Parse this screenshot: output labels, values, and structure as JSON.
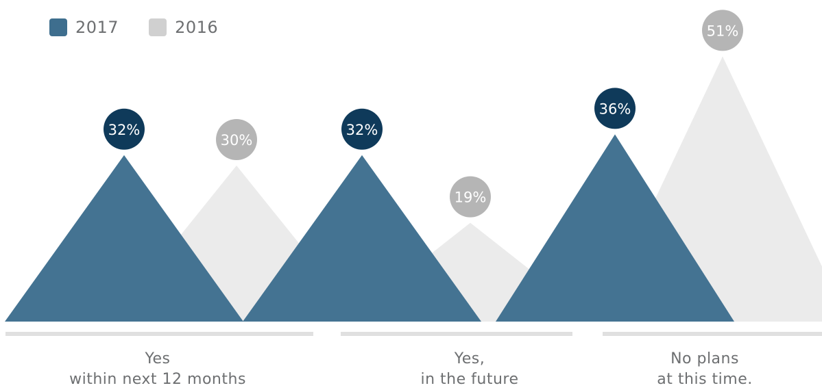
{
  "legend": [
    {
      "label": "2017",
      "color": "#3e6e8e"
    },
    {
      "label": "2016",
      "color": "#d0d0d0"
    }
  ],
  "colors": {
    "series_2017": "#3e6e8e",
    "series_2016": "#e8e8e8",
    "bubble_2017": "#0f3a5a",
    "bubble_2016": "#b5b5b5",
    "baseline": "#e0e0e0",
    "label_text": "#6d6f71"
  },
  "chart_data": {
    "type": "bar",
    "categories": [
      {
        "line1": "Yes",
        "line2": "within next 12 months"
      },
      {
        "line1": "Yes,",
        "line2": "in the future"
      },
      {
        "line1": "No plans",
        "line2": "at this time."
      }
    ],
    "series": [
      {
        "name": "2017",
        "values": [
          32,
          32,
          36
        ],
        "labels": [
          "32%",
          "32%",
          "36%"
        ]
      },
      {
        "name": "2016",
        "values": [
          30,
          19,
          51
        ],
        "labels": [
          "30%",
          "19%",
          "51%"
        ]
      }
    ],
    "unit": "%",
    "legend_position": "top-left",
    "grid": false
  }
}
